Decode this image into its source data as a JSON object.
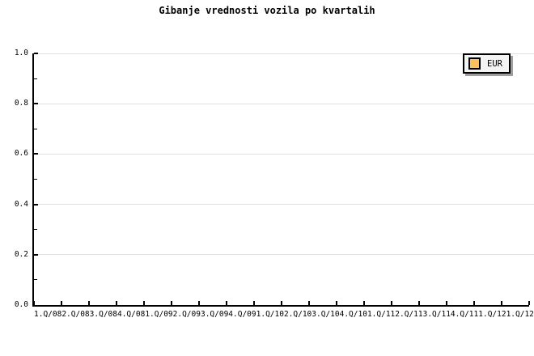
{
  "title": "Gibanje vrednosti vozila po kvartalih",
  "legend": {
    "items": [
      {
        "label": "EUR",
        "swatch_color": "#FBC05C"
      }
    ]
  },
  "colors": {
    "background": "#FFFFFF",
    "text": "#000000",
    "axis": "#000000",
    "gridline": "#E0E0E0",
    "legend_background": "#F4F4F4",
    "legend_border": "#000000",
    "legend_shadow": "#9E9E9E",
    "series_eur_swatch": "#FBC05C"
  },
  "chart_data": {
    "type": "line",
    "title": "Gibanje vrednosti vozila po kvartalih",
    "categories": [
      "1.Q/08",
      "2.Q/08",
      "3.Q/08",
      "4.Q/08",
      "1.Q/09",
      "2.Q/09",
      "3.Q/09",
      "4.Q/09",
      "1.Q/10",
      "2.Q/10",
      "3.Q/10",
      "4.Q/10",
      "1.Q/11",
      "2.Q/11",
      "3.Q/11",
      "4.Q/11",
      "1.Q/12",
      "1.Q/12"
    ],
    "series": [
      {
        "name": "EUR",
        "values": []
      }
    ],
    "xlabel": "",
    "ylabel": "",
    "ylim": [
      0.0,
      1.0
    ],
    "ytick_step": 0.2,
    "ytick_labels_top_to_bottom": [
      "1.0",
      "0.8",
      "0.6",
      "0.4",
      "0.2",
      "0.0"
    ],
    "grid": "horizontal major gridlines only",
    "legend_position": "top-right"
  }
}
